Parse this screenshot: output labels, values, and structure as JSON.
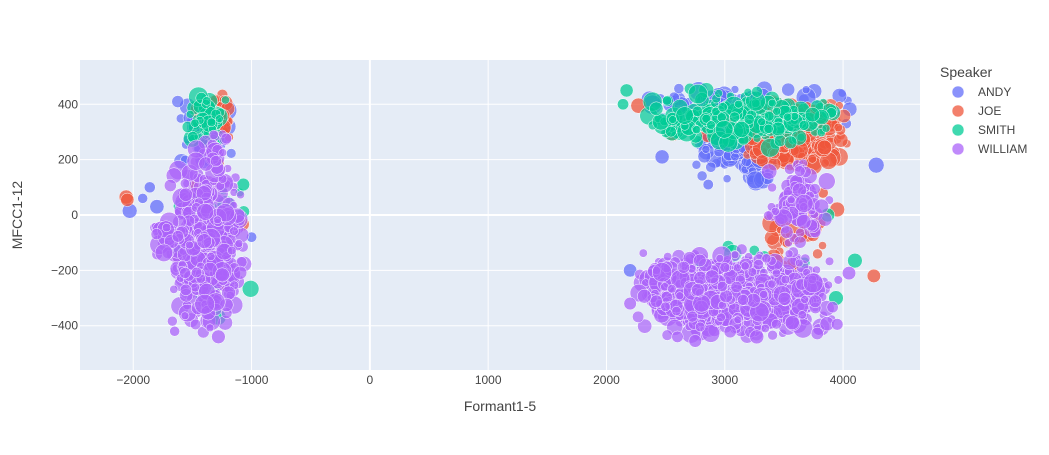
{
  "chart_data": {
    "type": "scatter",
    "title": "",
    "xlabel": "Formant1-5",
    "ylabel": "MFCC1-12",
    "xlim": [
      -2450,
      4650
    ],
    "ylim": [
      -560,
      560
    ],
    "x_ticks": [
      -2000,
      -1000,
      0,
      1000,
      2000,
      3000,
      4000
    ],
    "x_tick_labels": [
      "−2000",
      "−1000",
      "0",
      "1000",
      "2000",
      "3000",
      "4000"
    ],
    "y_ticks": [
      -400,
      -200,
      0,
      200,
      400
    ],
    "y_tick_labels": [
      "−400",
      "−200",
      "0",
      "200",
      "400"
    ],
    "grid": true,
    "legend_title": "Speaker",
    "legend_position": "right",
    "series": [
      {
        "name": "ANDY",
        "color": "#636efa",
        "clusters": [
          {
            "x": [
              -1650,
              -1150
            ],
            "y": [
              160,
              440
            ],
            "count": 90
          },
          {
            "x": [
              2750,
              3700
            ],
            "y": [
              110,
              420
            ],
            "count": 260
          },
          {
            "x": [
              2150,
              4250
            ],
            "y": [
              320,
              470
            ],
            "count": 80
          }
        ],
        "points": [
          {
            "x": -2030,
            "y": 15
          },
          {
            "x": -1860,
            "y": 100
          },
          {
            "x": -1920,
            "y": 60
          },
          {
            "x": -1000,
            "y": -80
          },
          {
            "x": -1800,
            "y": 30
          },
          {
            "x": 4280,
            "y": 180
          },
          {
            "x": 2860,
            "y": 110
          },
          {
            "x": 2470,
            "y": 210
          },
          {
            "x": 2200,
            "y": -200
          },
          {
            "x": 3560,
            "y": 60
          }
        ]
      },
      {
        "name": "JOE",
        "color": "#EF553B",
        "clusters": [
          {
            "x": [
              -1480,
              -1150
            ],
            "y": [
              250,
              450
            ],
            "count": 50
          },
          {
            "x": [
              3000,
              4100
            ],
            "y": [
              160,
              420
            ],
            "count": 260
          },
          {
            "x": [
              -1650,
              -1050
            ],
            "y": [
              -280,
              220
            ],
            "count": 35
          },
          {
            "x": [
              3300,
              3900
            ],
            "y": [
              -260,
              40
            ],
            "count": 35
          }
        ],
        "points": [
          {
            "x": -2060,
            "y": 65
          },
          {
            "x": -2050,
            "y": 55
          },
          {
            "x": 4260,
            "y": -220
          },
          {
            "x": 2270,
            "y": 395
          },
          {
            "x": 2520,
            "y": 300
          },
          {
            "x": 2560,
            "y": 295
          },
          {
            "x": 2860,
            "y": 290
          },
          {
            "x": 3830,
            "y": 80
          },
          {
            "x": 3950,
            "y": 20
          },
          {
            "x": -1200,
            "y": -250
          }
        ]
      },
      {
        "name": "SMITH",
        "color": "#00cc96",
        "clusters": [
          {
            "x": [
              -1550,
              -1200
            ],
            "y": [
              250,
              440
            ],
            "count": 55
          },
          {
            "x": [
              2200,
              4000
            ],
            "y": [
              240,
              470
            ],
            "count": 230
          },
          {
            "x": [
              -1700,
              -1000
            ],
            "y": [
              -380,
              220
            ],
            "count": 30
          },
          {
            "x": [
              2550,
              3900
            ],
            "y": [
              -400,
              -100
            ],
            "count": 30
          }
        ],
        "points": [
          {
            "x": 4100,
            "y": -165
          },
          {
            "x": -1070,
            "y": 110
          },
          {
            "x": -1150,
            "y": -30
          },
          {
            "x": -1280,
            "y": -370
          },
          {
            "x": 3870,
            "y": 0
          },
          {
            "x": 2140,
            "y": 400
          },
          {
            "x": 3940,
            "y": -300
          },
          {
            "x": 2170,
            "y": 450
          }
        ]
      },
      {
        "name": "WILLIAM",
        "color": "#ab63fa",
        "clusters": [
          {
            "x": [
              -1700,
              -1050
            ],
            "y": [
              -430,
              200
            ],
            "count": 430
          },
          {
            "x": [
              -1900,
              -1500
            ],
            "y": [
              -150,
              0
            ],
            "count": 30
          },
          {
            "x": [
              2200,
              4000
            ],
            "y": [
              -450,
              -120
            ],
            "count": 720
          },
          {
            "x": [
              3350,
              3900
            ],
            "y": [
              -120,
              200
            ],
            "count": 90
          },
          {
            "x": [
              -1500,
              -1150
            ],
            "y": [
              160,
              300
            ],
            "count": 25
          }
        ],
        "points": [
          {
            "x": -1280,
            "y": -440
          },
          {
            "x": -1650,
            "y": -420
          },
          {
            "x": 3950,
            "y": -395
          },
          {
            "x": 2750,
            "y": -455
          },
          {
            "x": 2200,
            "y": -320
          },
          {
            "x": 4050,
            "y": -210
          },
          {
            "x": 3270,
            "y": -440
          },
          {
            "x": 2600,
            "y": -440
          }
        ]
      }
    ]
  }
}
